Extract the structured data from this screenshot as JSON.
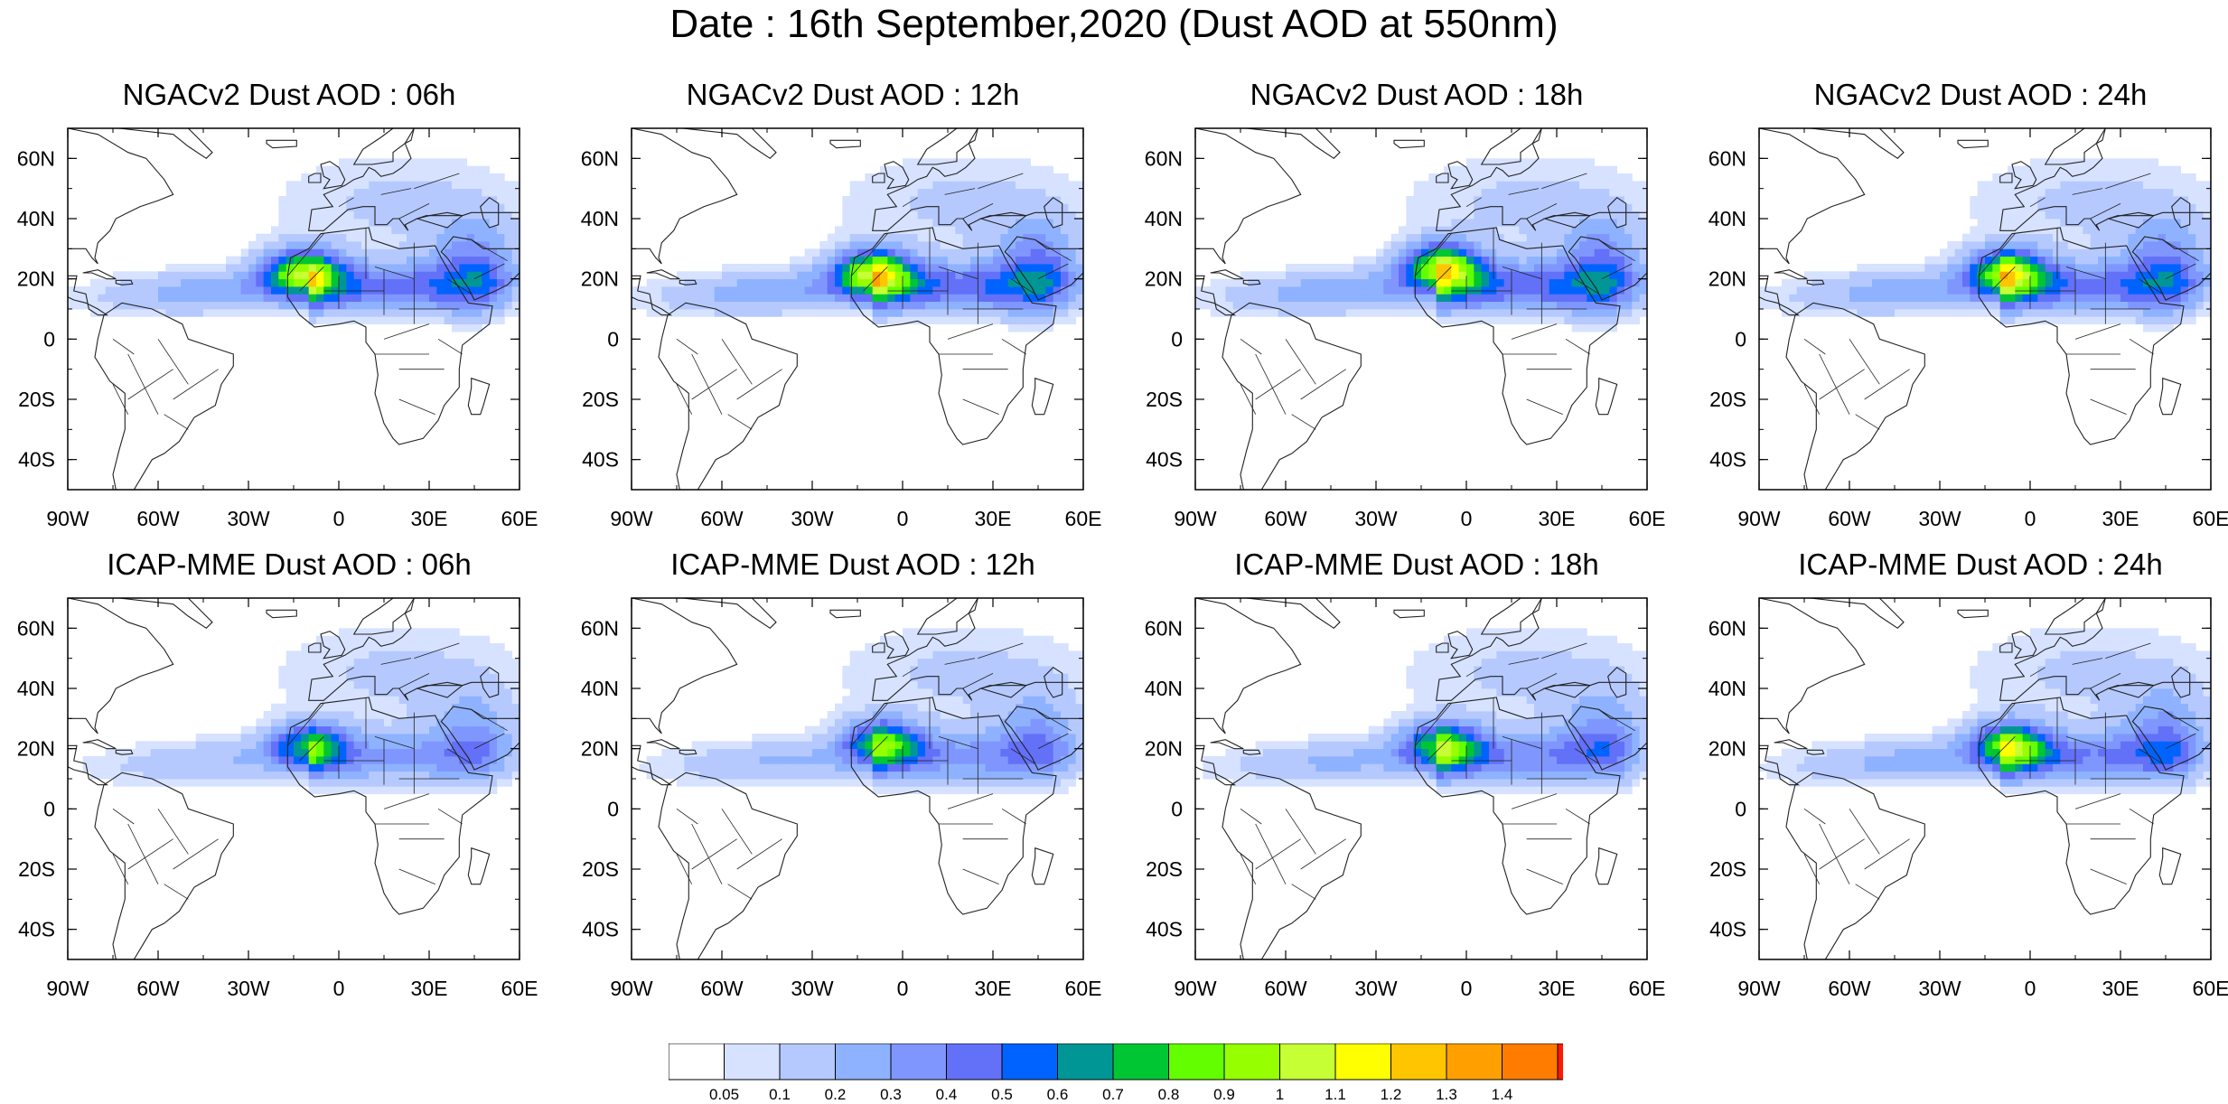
{
  "title": "Date : 16th September,2020 (Dust AOD at 550nm)",
  "map": {
    "lon_range": [
      -90,
      60
    ],
    "lat_range": [
      -50,
      70
    ],
    "lon_tick_labels": [
      {
        "lon": -90,
        "label": "90W"
      },
      {
        "lon": -60,
        "label": "60W"
      },
      {
        "lon": -30,
        "label": "30W"
      },
      {
        "lon": 0,
        "label": "0"
      },
      {
        "lon": 30,
        "label": "30E"
      },
      {
        "lon": 60,
        "label": "60E"
      }
    ],
    "lat_tick_labels": [
      {
        "lat": 60,
        "label": "60N"
      },
      {
        "lat": 40,
        "label": "40N"
      },
      {
        "lat": 20,
        "label": "20N"
      },
      {
        "lat": 0,
        "label": "0"
      },
      {
        "lat": -20,
        "label": "20S"
      },
      {
        "lat": -40,
        "label": "40S"
      }
    ]
  },
  "panels": [
    {
      "title": "NGACv2 Dust AOD : 06h",
      "model": "NGACv2",
      "forecast_hour": "06h",
      "plume_strength": 0.85,
      "hotspot_lon": -12,
      "hotspot_lat": 22
    },
    {
      "title": "NGACv2 Dust AOD : 12h",
      "model": "NGACv2",
      "forecast_hour": "12h",
      "plume_strength": 0.9,
      "hotspot_lon": -10,
      "hotspot_lat": 22
    },
    {
      "title": "NGACv2 Dust AOD : 18h",
      "model": "NGACv2",
      "forecast_hour": "18h",
      "plume_strength": 0.9,
      "hotspot_lon": -8,
      "hotspot_lat": 24
    },
    {
      "title": "NGACv2 Dust AOD : 24h",
      "model": "NGACv2",
      "forecast_hour": "24h",
      "plume_strength": 0.85,
      "hotspot_lon": -8,
      "hotspot_lat": 22
    },
    {
      "title": "ICAP-MME Dust AOD : 06h",
      "model": "ICAP-MME",
      "forecast_hour": "06h",
      "plume_strength": 0.6,
      "hotspot_lon": -10,
      "hotspot_lat": 21
    },
    {
      "title": "ICAP-MME Dust AOD : 12h",
      "model": "ICAP-MME",
      "forecast_hour": "12h",
      "plume_strength": 0.65,
      "hotspot_lon": -7,
      "hotspot_lat": 22
    },
    {
      "title": "ICAP-MME Dust AOD : 18h",
      "model": "ICAP-MME",
      "forecast_hour": "18h",
      "plume_strength": 0.7,
      "hotspot_lon": -8,
      "hotspot_lat": 21
    },
    {
      "title": "ICAP-MME Dust AOD : 24h",
      "model": "ICAP-MME",
      "forecast_hour": "24h",
      "plume_strength": 0.75,
      "hotspot_lon": -7,
      "hotspot_lat": 21
    }
  ],
  "colorbar": {
    "levels": [
      "0.05",
      "0.1",
      "0.2",
      "0.3",
      "0.4",
      "0.5",
      "0.6",
      "0.7",
      "0.8",
      "0.9",
      "1",
      "1.1",
      "1.2",
      "1.3",
      "1.4"
    ],
    "colors": [
      "#ffffff",
      "#d6e2ff",
      "#b5c9ff",
      "#8eb2ff",
      "#7f96ff",
      "#6370f8",
      "#0063ff",
      "#009696",
      "#00c633",
      "#63ff00",
      "#96ff00",
      "#c6ff33",
      "#ffff00",
      "#ffc600",
      "#ffa000",
      "#ff7c00",
      "#ff1900"
    ]
  }
}
